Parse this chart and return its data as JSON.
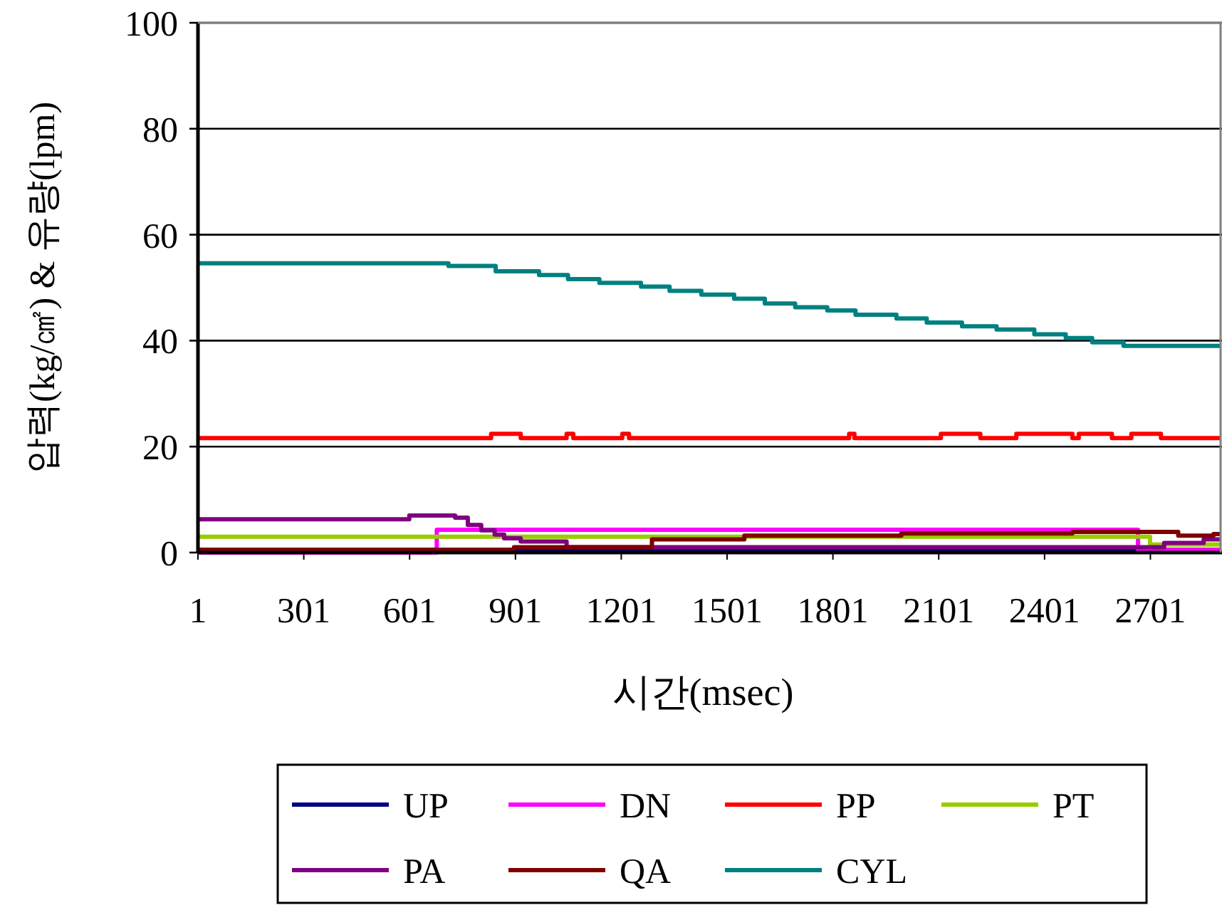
{
  "chart_data": {
    "type": "step",
    "xlabel": "시간(msec)",
    "ylabel": "압력(kg/㎠) & 유량(lpm)",
    "xlim": [
      1,
      2900
    ],
    "xticks": [
      1,
      301,
      601,
      901,
      1201,
      1501,
      1801,
      2101,
      2401,
      2701
    ],
    "ylim": [
      0,
      100
    ],
    "yticks": [
      0,
      20,
      40,
      60,
      80,
      100
    ],
    "grid": "y",
    "legend": "bottom",
    "series": [
      {
        "name": "UP",
        "color": "#000080",
        "x": [
          1,
          2900
        ],
        "values": [
          0.5,
          0.5
        ]
      },
      {
        "name": "DN",
        "color": "#ff00ff",
        "x": [
          1,
          678,
          2666,
          2900
        ],
        "values": [
          0,
          4.3,
          0.5,
          0.5
        ]
      },
      {
        "name": "PP",
        "color": "#ff0000",
        "x": [
          1,
          832,
          916,
          1046,
          1065,
          1204,
          1223,
          1847,
          1862,
          2107,
          2219,
          2321,
          2480,
          2498,
          2592,
          2647,
          2731,
          2900
        ],
        "values": [
          21.6,
          22.4,
          21.6,
          22.4,
          21.6,
          22.4,
          21.6,
          22.4,
          21.6,
          22.4,
          21.6,
          22.4,
          21.6,
          22.4,
          21.6,
          22.4,
          21.6,
          21.6
        ]
      },
      {
        "name": "PT",
        "color": "#99cc00",
        "x": [
          1,
          2700,
          2900
        ],
        "values": [
          3.0,
          1.5,
          1.5
        ]
      },
      {
        "name": "PA",
        "color": "#800080",
        "x": [
          1,
          600,
          730,
          766,
          804,
          842,
          869,
          916,
          1046,
          2666,
          2740,
          2852,
          2900
        ],
        "values": [
          6.3,
          7.0,
          6.6,
          5.2,
          4.2,
          3.4,
          2.7,
          2.1,
          1.0,
          1.0,
          1.8,
          2.5,
          2.5
        ]
      },
      {
        "name": "QA",
        "color": "#800000",
        "x": [
          1,
          897,
          1288,
          1550,
          1995,
          2480,
          2780,
          2880,
          2900
        ],
        "values": [
          0.5,
          1.0,
          2.5,
          3.2,
          3.6,
          3.9,
          3.2,
          3.5,
          3.5
        ]
      },
      {
        "name": "CYL",
        "color": "#008080",
        "x": [
          1,
          711,
          845,
          968,
          1050,
          1139,
          1257,
          1338,
          1428,
          1521,
          1608,
          1694,
          1785,
          1865,
          1981,
          2067,
          2167,
          2265,
          2372,
          2461,
          2536,
          2625,
          2900
        ],
        "values": [
          54.6,
          54.1,
          53.1,
          52.4,
          51.6,
          50.9,
          50.2,
          49.4,
          48.7,
          47.9,
          47.0,
          46.3,
          45.7,
          44.9,
          44.2,
          43.4,
          42.7,
          42.1,
          41.2,
          40.5,
          39.7,
          39.0,
          39.0
        ]
      }
    ]
  }
}
